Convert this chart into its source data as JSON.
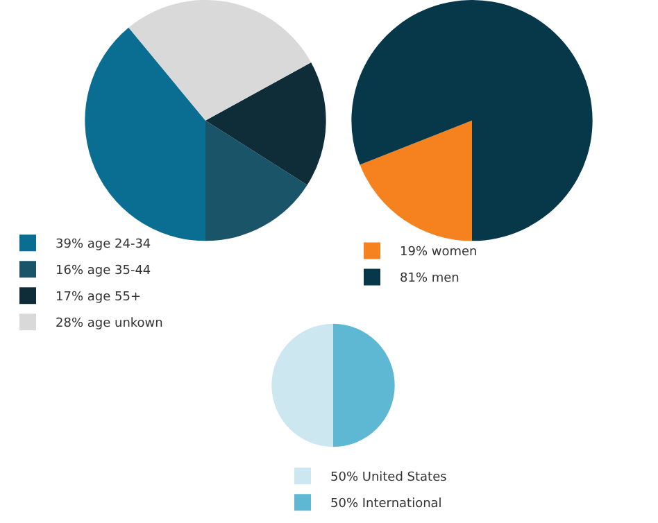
{
  "chart_data": [
    {
      "type": "pie",
      "categories": [
        "39% age 24-34",
        "16% age 35-44",
        "17% age 55+",
        "28% age unkown"
      ],
      "values": [
        39,
        16,
        17,
        28
      ],
      "colors": [
        "#0a6e92",
        "#1a5468",
        "#0f2d38",
        "#d9d9d9"
      ],
      "legend": "bottom"
    },
    {
      "type": "pie",
      "categories": [
        "19% women",
        "81% men"
      ],
      "values": [
        19,
        81
      ],
      "colors": [
        "#f5821f",
        "#063849"
      ],
      "legend": "bottom"
    },
    {
      "type": "pie",
      "categories": [
        "50% United States",
        "50% International"
      ],
      "values": [
        50,
        50
      ],
      "colors": [
        "#cde7f0",
        "#5fb8d3"
      ],
      "legend": "bottom"
    }
  ]
}
